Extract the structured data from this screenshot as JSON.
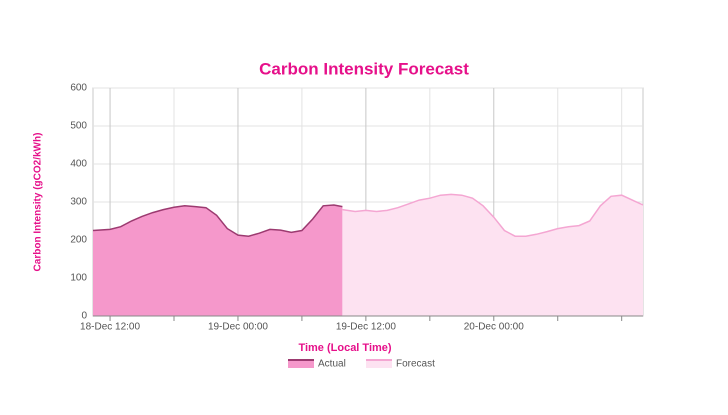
{
  "chart_data": {
    "type": "area",
    "title": "Carbon Intensity Forecast",
    "x_label": "Time (Local Time)",
    "y_label": "Carbon Intensity (gCO2/kWh)",
    "xlim": [
      10.4,
      62
    ],
    "xticks": [
      {
        "value": 12,
        "label": "18-Dec 12:00"
      },
      {
        "value": 24,
        "label": "19-Dec 00:00"
      },
      {
        "value": 36,
        "label": "19-Dec 12:00"
      },
      {
        "value": 48,
        "label": "20-Dec 00:00"
      }
    ],
    "xminor": [
      18,
      30,
      42,
      54,
      60
    ],
    "ylim": [
      0,
      600
    ],
    "yticks": [
      0,
      100,
      200,
      300,
      400,
      500,
      600
    ],
    "grid": true,
    "legend": "bottom",
    "series": [
      {
        "name": "Actual",
        "color": "#f598cb",
        "line_color": "#9c3a70",
        "x": [
          10.4,
          12,
          13,
          14,
          15,
          16,
          17,
          18,
          19,
          20,
          21,
          22,
          23,
          24,
          25,
          26,
          27,
          28,
          29,
          30,
          31,
          32,
          33,
          33.8
        ],
        "values": [
          225,
          228,
          235,
          250,
          262,
          272,
          280,
          286,
          290,
          288,
          285,
          265,
          230,
          213,
          210,
          218,
          228,
          226,
          220,
          225,
          255,
          290,
          292,
          288
        ]
      },
      {
        "name": "Forecast",
        "color": "#fde2f1",
        "line_color": "#f4a6d2",
        "x": [
          33.8,
          35,
          36,
          37,
          38,
          39,
          40,
          41,
          42,
          43,
          44,
          45,
          46,
          47,
          48,
          49,
          50,
          51,
          52,
          53,
          54,
          55,
          56,
          57,
          58,
          59,
          60,
          61,
          62
        ],
        "values": [
          280,
          275,
          278,
          275,
          278,
          285,
          295,
          305,
          310,
          318,
          320,
          318,
          310,
          290,
          260,
          225,
          210,
          210,
          215,
          222,
          230,
          235,
          238,
          250,
          290,
          315,
          318,
          305,
          292
        ]
      }
    ]
  }
}
